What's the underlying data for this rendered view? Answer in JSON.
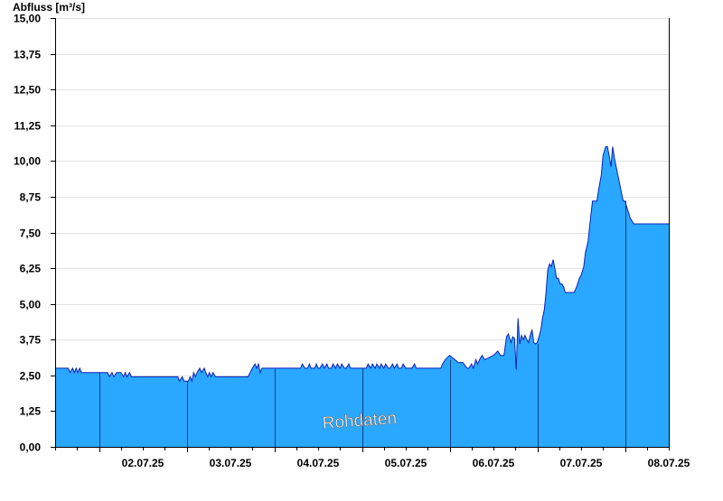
{
  "chart_data": {
    "type": "area",
    "ylabel": "Abfluss [m³/s]",
    "ylim": [
      0,
      15
    ],
    "y_ticks": [
      "0,00",
      "1,25",
      "2,50",
      "3,75",
      "5,00",
      "6,25",
      "7,50",
      "8,75",
      "10,00",
      "11,25",
      "12,50",
      "13,75",
      "15,00"
    ],
    "x_range_days": [
      1.5,
      8.5
    ],
    "x_tick_labels": [
      "02.07.25",
      "03.07.25",
      "04.07.25",
      "05.07.25",
      "06.07.25",
      "07.07.25",
      "08.07.25"
    ],
    "annotation": "Rohdaten",
    "grid": true,
    "colors": {
      "fill": "#2aa8ff",
      "line": "#0a1fb8",
      "day_separator": "#0b3d8a",
      "grid": "#e2e2e2"
    },
    "series": [
      {
        "x": [
          1.5,
          1.65,
          1.67,
          1.7,
          1.72,
          1.74,
          1.76,
          1.78,
          1.8,
          1.82,
          2.1,
          2.12,
          2.15,
          2.17,
          2.2,
          2.25,
          2.28,
          2.3,
          2.32,
          2.35,
          2.37,
          2.4,
          2.5,
          2.9,
          2.92,
          2.95,
          2.97,
          3.0,
          3.02,
          3.04,
          3.06,
          3.08,
          3.1,
          3.12,
          3.15,
          3.17,
          3.2,
          3.22,
          3.24,
          3.26,
          3.28,
          3.3,
          3.33,
          3.7,
          3.75,
          3.78,
          3.8,
          3.82,
          3.84,
          3.86,
          3.9,
          4.3,
          4.32,
          4.35,
          4.38,
          4.4,
          4.42,
          4.46,
          4.48,
          4.5,
          4.52,
          4.55,
          4.57,
          4.6,
          4.62,
          4.65,
          4.67,
          4.7,
          4.72,
          4.75,
          4.77,
          4.8,
          4.82,
          4.85,
          4.87,
          4.9,
          4.92,
          4.95,
          5.05,
          5.07,
          5.1,
          5.12,
          5.15,
          5.17,
          5.2,
          5.22,
          5.25,
          5.27,
          5.3,
          5.32,
          5.35,
          5.37,
          5.4,
          5.42,
          5.45,
          5.47,
          5.5,
          5.55,
          5.57,
          5.6,
          5.62,
          5.65,
          5.8,
          5.85,
          5.9,
          5.92,
          5.95,
          6.0,
          6.1,
          6.15,
          6.2,
          6.22,
          6.25,
          6.27,
          6.3,
          6.32,
          6.35,
          6.37,
          6.4,
          6.5,
          6.55,
          6.58,
          6.6,
          6.62,
          6.65,
          6.67,
          6.7,
          6.72,
          6.74,
          6.76,
          6.78,
          6.8,
          6.82,
          6.84,
          6.86,
          6.88,
          6.9,
          6.92,
          6.94,
          6.96,
          6.98,
          7.0,
          7.02,
          7.04,
          7.06,
          7.08,
          7.1,
          7.12,
          7.14,
          7.16,
          7.18,
          7.2,
          7.22,
          7.24,
          7.26,
          7.28,
          7.3,
          7.32,
          7.35,
          7.38,
          7.4,
          7.42,
          7.45,
          7.48,
          7.5,
          7.53,
          7.55,
          7.58,
          7.6,
          7.63,
          7.65,
          7.68,
          7.7,
          7.73,
          7.75,
          7.78,
          7.8,
          7.82,
          7.84,
          7.86,
          7.88,
          7.9,
          7.92,
          7.94,
          7.96,
          7.98,
          8.0,
          8.02,
          8.04,
          8.06,
          8.08,
          8.1,
          8.12,
          8.14,
          8.16,
          8.18,
          8.2,
          8.22,
          8.24,
          8.26,
          8.28,
          8.3,
          8.32,
          8.34,
          8.36,
          8.38,
          8.4,
          8.42,
          8.44,
          8.46,
          8.48,
          8.5
        ],
        "y": [
          2.75,
          2.75,
          2.6,
          2.75,
          2.6,
          2.75,
          2.6,
          2.75,
          2.6,
          2.6,
          2.6,
          2.45,
          2.6,
          2.45,
          2.6,
          2.6,
          2.45,
          2.6,
          2.45,
          2.6,
          2.45,
          2.45,
          2.45,
          2.45,
          2.3,
          2.45,
          2.3,
          2.3,
          2.3,
          2.45,
          2.3,
          2.6,
          2.45,
          2.6,
          2.75,
          2.6,
          2.75,
          2.6,
          2.45,
          2.6,
          2.45,
          2.6,
          2.45,
          2.45,
          2.75,
          2.9,
          2.75,
          2.9,
          2.6,
          2.75,
          2.75,
          2.75,
          2.9,
          2.75,
          2.75,
          2.9,
          2.75,
          2.75,
          2.9,
          2.75,
          2.75,
          2.9,
          2.75,
          2.9,
          2.75,
          2.75,
          2.9,
          2.75,
          2.9,
          2.75,
          2.9,
          2.75,
          2.75,
          2.9,
          2.75,
          2.75,
          2.75,
          2.75,
          2.75,
          2.9,
          2.75,
          2.9,
          2.75,
          2.9,
          2.75,
          2.9,
          2.75,
          2.9,
          2.75,
          2.75,
          2.9,
          2.75,
          2.9,
          2.75,
          2.75,
          2.9,
          2.75,
          2.75,
          2.75,
          2.9,
          2.75,
          2.75,
          2.75,
          2.75,
          2.75,
          2.9,
          3.05,
          3.2,
          2.95,
          2.95,
          2.75,
          2.75,
          2.9,
          2.75,
          3.05,
          2.9,
          3.1,
          3.2,
          3.05,
          3.2,
          3.35,
          3.2,
          3.2,
          3.2,
          3.85,
          3.95,
          3.65,
          3.85,
          3.8,
          2.7,
          4.5,
          3.6,
          3.9,
          3.75,
          3.9,
          3.75,
          3.65,
          3.9,
          4.1,
          3.65,
          3.6,
          3.65,
          3.85,
          4.1,
          4.5,
          4.8,
          5.4,
          6.2,
          6.4,
          6.3,
          6.55,
          6.25,
          5.9,
          5.9,
          5.7,
          5.7,
          5.6,
          5.4,
          5.4,
          5.4,
          5.4,
          5.4,
          5.6,
          5.9,
          6.0,
          6.3,
          6.8,
          7.2,
          7.8,
          8.6,
          8.6,
          8.6,
          9.0,
          9.5,
          10.2,
          10.5,
          10.5,
          10.2,
          9.8,
          10.5,
          10.1,
          9.8,
          9.5,
          9.2,
          8.9,
          8.6,
          8.6,
          8.4,
          8.2,
          8.0,
          7.9,
          7.8,
          7.8,
          7.8,
          7.8,
          7.8,
          7.8,
          7.8,
          7.8,
          7.8,
          7.8,
          7.8,
          7.8,
          7.8,
          7.8,
          7.8,
          7.8,
          7.8,
          7.8,
          7.8,
          7.8,
          7.8
        ]
      }
    ]
  }
}
